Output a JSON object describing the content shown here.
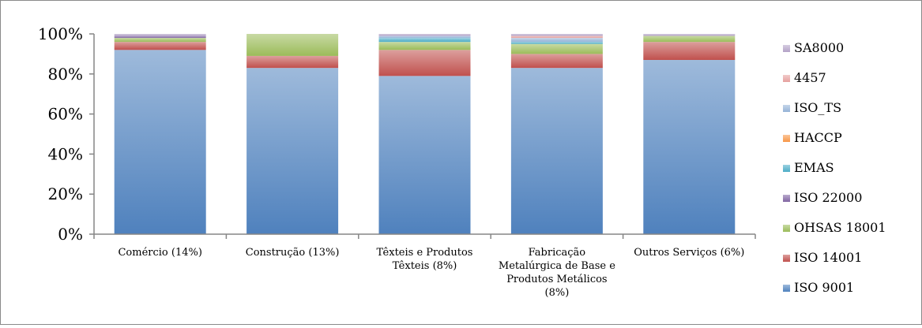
{
  "chart_data": {
    "type": "bar",
    "stacked": true,
    "percent": true,
    "title": "",
    "xlabel": "",
    "ylabel": "",
    "ylim": [
      0,
      100
    ],
    "yticks": [
      "0%",
      "20%",
      "40%",
      "60%",
      "80%",
      "100%"
    ],
    "grid": false,
    "legend_position": "right",
    "categories": [
      "Comércio (14%)",
      "Construção (13%)",
      "Têxteis e Produtos Têxteis (8%)",
      "Fabricação Metalúrgica de Base e Produtos Metálicos (8%)",
      "Outros Serviços (6%)"
    ],
    "category_lines": [
      [
        "Comércio (14%)"
      ],
      [
        "Construção (13%)"
      ],
      [
        "Têxteis e Produtos",
        "Têxteis (8%)"
      ],
      [
        "Fabricação",
        "Metalúrgica de Base e",
        "Produtos Metálicos",
        "(8%)"
      ],
      [
        "Outros Serviços (6%)"
      ]
    ],
    "series": [
      {
        "name": "ISO 9001",
        "color": "#4f81bd",
        "values": [
          92,
          83,
          79,
          83,
          87
        ]
      },
      {
        "name": "ISO 14001",
        "color": "#c0504d",
        "values": [
          4,
          6,
          13,
          7,
          9
        ]
      },
      {
        "name": "OHSAS 18001",
        "color": "#9bbb59",
        "values": [
          2,
          11,
          4,
          5,
          3
        ]
      },
      {
        "name": "ISO 22000",
        "color": "#8064a2",
        "values": [
          1,
          0,
          0,
          0,
          0
        ]
      },
      {
        "name": "EMAS",
        "color": "#4bacc6",
        "values": [
          0,
          0,
          2,
          1,
          0
        ]
      },
      {
        "name": "HACCP",
        "color": "#f79646",
        "values": [
          0,
          0,
          0,
          0,
          0
        ]
      },
      {
        "name": "ISO_TS",
        "color": "#95b3d7",
        "values": [
          0,
          0,
          1,
          2,
          0
        ]
      },
      {
        "name": "4457",
        "color": "#e6a09e",
        "values": [
          0,
          0,
          0,
          1,
          0
        ]
      },
      {
        "name": "SA8000",
        "color": "#b3a2c7",
        "values": [
          1,
          0,
          1,
          1,
          1
        ]
      }
    ]
  }
}
